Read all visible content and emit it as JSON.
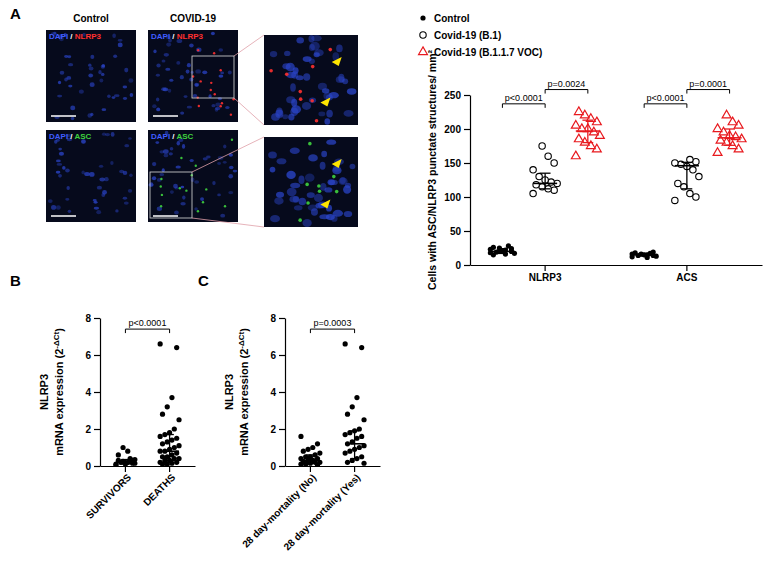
{
  "figure": {
    "panel_labels": [
      "A",
      "B",
      "C"
    ],
    "columns": [
      "Control",
      "COVID-19"
    ],
    "stains": [
      {
        "labels": [
          "DAPI",
          "/",
          "NLRP3"
        ],
        "colors": [
          "#3f5cff",
          "#ffffff",
          "#ff3030"
        ]
      },
      {
        "labels": [
          "DAPI",
          "/",
          "ASC"
        ],
        "colors": [
          "#3f5cff",
          "#ffffff",
          "#3fd23f"
        ]
      }
    ]
  },
  "chart_data": [
    {
      "type": "scatter",
      "categories": [
        "NLRP3",
        "ACS"
      ],
      "ylabel": "Cells with ASC/NLRP3 punctate structures/ mm²",
      "ylim": [
        0,
        250
      ],
      "yticks": [
        0,
        50,
        100,
        150,
        200,
        250
      ],
      "legend": "top",
      "series": [
        {
          "name": "Control",
          "color": "#000000",
          "marker": "circle",
          "values": [
            [
              18,
              20,
              22,
              25,
              15,
              17,
              28,
              21,
              19,
              23,
              24,
              16,
              20,
              26
            ],
            [
              12,
              14,
              15,
              16,
              18,
              13,
              17,
              15,
              14,
              16,
              19,
              11
            ]
          ],
          "median": [
            20,
            15
          ],
          "q1": [
            17,
            13.5
          ],
          "q3": [
            24,
            17
          ]
        },
        {
          "name": "Covid-19 (B.1)",
          "color": "#000000",
          "marker": "circle-open",
          "values": [
            [
              105,
              110,
              112,
              115,
              118,
              120,
              122,
              125,
              130,
              140,
              150,
              160,
              175
            ],
            [
              95,
              100,
              105,
              115,
              120,
              130,
              140,
              145,
              148,
              150,
              152,
              155
            ]
          ],
          "median": [
            120,
            146
          ],
          "q1": [
            112,
            112
          ],
          "q3": [
            135,
            151
          ]
        },
        {
          "name": "Covid-19 (B.1.1.7 VOC)",
          "color": "#e8191e",
          "marker": "triangle-open",
          "values": [
            [
              160,
              170,
              175,
              180,
              185,
              190,
              195,
              200,
              200,
              205,
              210,
              215,
              220,
              225
            ],
            [
              165,
              170,
              175,
              180,
              183,
              185,
              188,
              190,
              195,
              200,
              205,
              210,
              220
            ]
          ],
          "median": [
            197,
            187
          ],
          "q1": [
            180,
            176
          ],
          "q3": [
            213,
            200
          ]
        }
      ],
      "annotations": [
        {
          "text": "p<0.0001",
          "category": 0,
          "from": 0,
          "to": 1,
          "y": 237
        },
        {
          "text": "p=0.0024",
          "category": 0,
          "from": 1,
          "to": 2,
          "y": 258
        },
        {
          "text": "p<0.0001",
          "category": 1,
          "from": 0,
          "to": 1,
          "y": 237
        },
        {
          "text": "p=0.0001",
          "category": 1,
          "from": 1,
          "to": 2,
          "y": 258
        }
      ]
    },
    {
      "type": "scatter",
      "categories": [
        "SURVIVORS",
        "DEATHS"
      ],
      "ylabel": [
        "NLRP3",
        "mRNA expression (2",
        "-ΔCt",
        ")"
      ],
      "ylim": [
        0,
        8
      ],
      "yticks": [
        0,
        2,
        4,
        6,
        8
      ],
      "color": "#000000",
      "marker": "circle",
      "values": [
        [
          0.1,
          0.15,
          0.2,
          0.25,
          0.3,
          0.35,
          0.4,
          0.1,
          0.2,
          0.05,
          0.3,
          0.8,
          1.0,
          0.6,
          0.15
        ],
        [
          6.6,
          6.4,
          3.7,
          3.2,
          2.8,
          2.5,
          2.0,
          1.8,
          1.7,
          1.6,
          1.5,
          1.4,
          1.3,
          1.2,
          1.1,
          1.0,
          0.9,
          0.8,
          0.8,
          0.7,
          0.6,
          0.5,
          0.5,
          0.4,
          0.4,
          0.3,
          0.3,
          0.2,
          0.2,
          0.15,
          0.1,
          0.1
        ]
      ],
      "median": [
        0.25,
        0.8
      ],
      "q1": [
        0.1,
        0.3
      ],
      "q3": [
        0.35,
        1.7
      ],
      "annotations": [
        {
          "text": "p<0.0001",
          "from": 0,
          "to": 1,
          "y": 7.4
        }
      ]
    },
    {
      "type": "scatter",
      "categories": [
        "28 day-mortality (No)",
        "28 day-mortality (Yes)"
      ],
      "ylabel": [
        "NLRP3",
        "mRNA expression (2",
        "-ΔCt",
        ")"
      ],
      "ylim": [
        0,
        8
      ],
      "yticks": [
        0,
        2,
        4,
        6,
        8
      ],
      "color": "#000000",
      "marker": "circle",
      "values": [
        [
          1.6,
          1.2,
          1.0,
          0.9,
          0.8,
          0.7,
          0.6,
          0.5,
          0.5,
          0.4,
          0.4,
          0.3,
          0.3,
          0.25,
          0.2,
          0.2,
          0.15,
          0.1,
          0.1,
          0.05,
          0.3,
          0.2
        ],
        [
          6.6,
          6.4,
          3.7,
          3.2,
          2.8,
          2.5,
          2.0,
          1.9,
          1.8,
          1.7,
          1.6,
          1.5,
          1.3,
          1.2,
          1.1,
          1.0,
          0.9,
          0.8,
          0.7,
          0.5,
          0.4,
          0.3,
          0.2,
          0.15
        ]
      ],
      "median": [
        0.3,
        1.2
      ],
      "q1": [
        0.15,
        0.4
      ],
      "q3": [
        0.6,
        1.9
      ],
      "annotations": [
        {
          "text": "p=0.0003",
          "from": 0,
          "to": 1,
          "y": 7.4
        }
      ]
    }
  ]
}
